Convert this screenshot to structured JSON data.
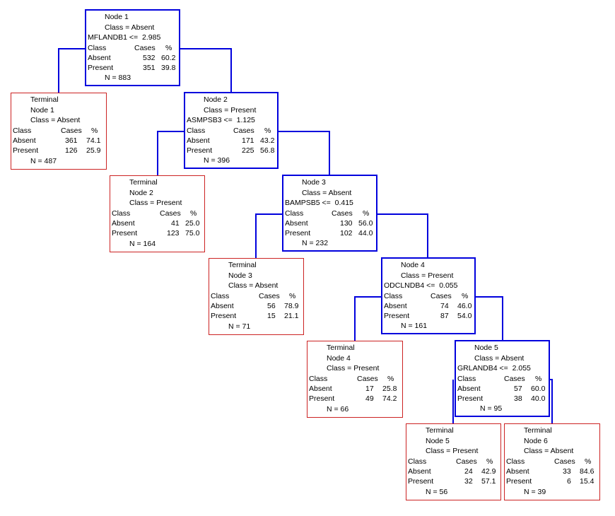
{
  "labels": {
    "class_header": "Class",
    "cases_header": "Cases",
    "pct_header": "%",
    "absent": "Absent",
    "present": "Present"
  },
  "nodes": {
    "node1": {
      "title": "Node 1",
      "class_line": "Class = Absent",
      "split": "MFLANDB1 <=  2.985",
      "absent_cases": "532",
      "absent_pct": "60.2",
      "present_cases": "351",
      "present_pct": "39.8",
      "n": "N = 883"
    },
    "node2": {
      "title": "Node 2",
      "class_line": "Class = Present",
      "split": "ASMPSB3 <=  1.125",
      "absent_cases": "171",
      "absent_pct": "43.2",
      "present_cases": "225",
      "present_pct": "56.8",
      "n": "N = 396"
    },
    "node3": {
      "title": "Node 3",
      "class_line": "Class = Absent",
      "split": "BAMPSB5 <=  0.415",
      "absent_cases": "130",
      "absent_pct": "56.0",
      "present_cases": "102",
      "present_pct": "44.0",
      "n": "N = 232"
    },
    "node4": {
      "title": "Node 4",
      "class_line": "Class = Present",
      "split": "ODCLNDB4 <=  0.055",
      "absent_cases": "74",
      "absent_pct": "46.0",
      "present_cases": "87",
      "present_pct": "54.0",
      "n": "N = 161"
    },
    "node5": {
      "title": "Node 5",
      "class_line": "Class = Absent",
      "split": "GRLANDB4 <=  2.055",
      "absent_cases": "57",
      "absent_pct": "60.0",
      "present_cases": "38",
      "present_pct": "40.0",
      "n": "N = 95"
    }
  },
  "terminals": {
    "t1": {
      "heading": "Terminal",
      "title": "Node 1",
      "class_line": "Class = Absent",
      "absent_cases": "361",
      "absent_pct": "74.1",
      "present_cases": "126",
      "present_pct": "25.9",
      "n": "N = 487"
    },
    "t2": {
      "heading": "Terminal",
      "title": "Node 2",
      "class_line": "Class = Present",
      "absent_cases": "41",
      "absent_pct": "25.0",
      "present_cases": "123",
      "present_pct": "75.0",
      "n": "N = 164"
    },
    "t3": {
      "heading": "Terminal",
      "title": "Node 3",
      "class_line": "Class = Absent",
      "absent_cases": "56",
      "absent_pct": "78.9",
      "present_cases": "15",
      "present_pct": "21.1",
      "n": "N = 71"
    },
    "t4": {
      "heading": "Terminal",
      "title": "Node 4",
      "class_line": "Class = Present",
      "absent_cases": "17",
      "absent_pct": "25.8",
      "present_cases": "49",
      "present_pct": "74.2",
      "n": "N = 66"
    },
    "t5": {
      "heading": "Terminal",
      "title": "Node 5",
      "class_line": "Class = Present",
      "absent_cases": "24",
      "absent_pct": "42.9",
      "present_cases": "32",
      "present_pct": "57.1",
      "n": "N = 56"
    },
    "t6": {
      "heading": "Terminal",
      "title": "Node 6",
      "class_line": "Class = Absent",
      "absent_cases": "33",
      "absent_pct": "84.6",
      "present_cases": "6",
      "present_pct": "15.4",
      "n": "N = 39"
    }
  },
  "colors": {
    "split_border": "#0000dd",
    "terminal_border": "#cc2222",
    "connector": "#0000dd"
  }
}
